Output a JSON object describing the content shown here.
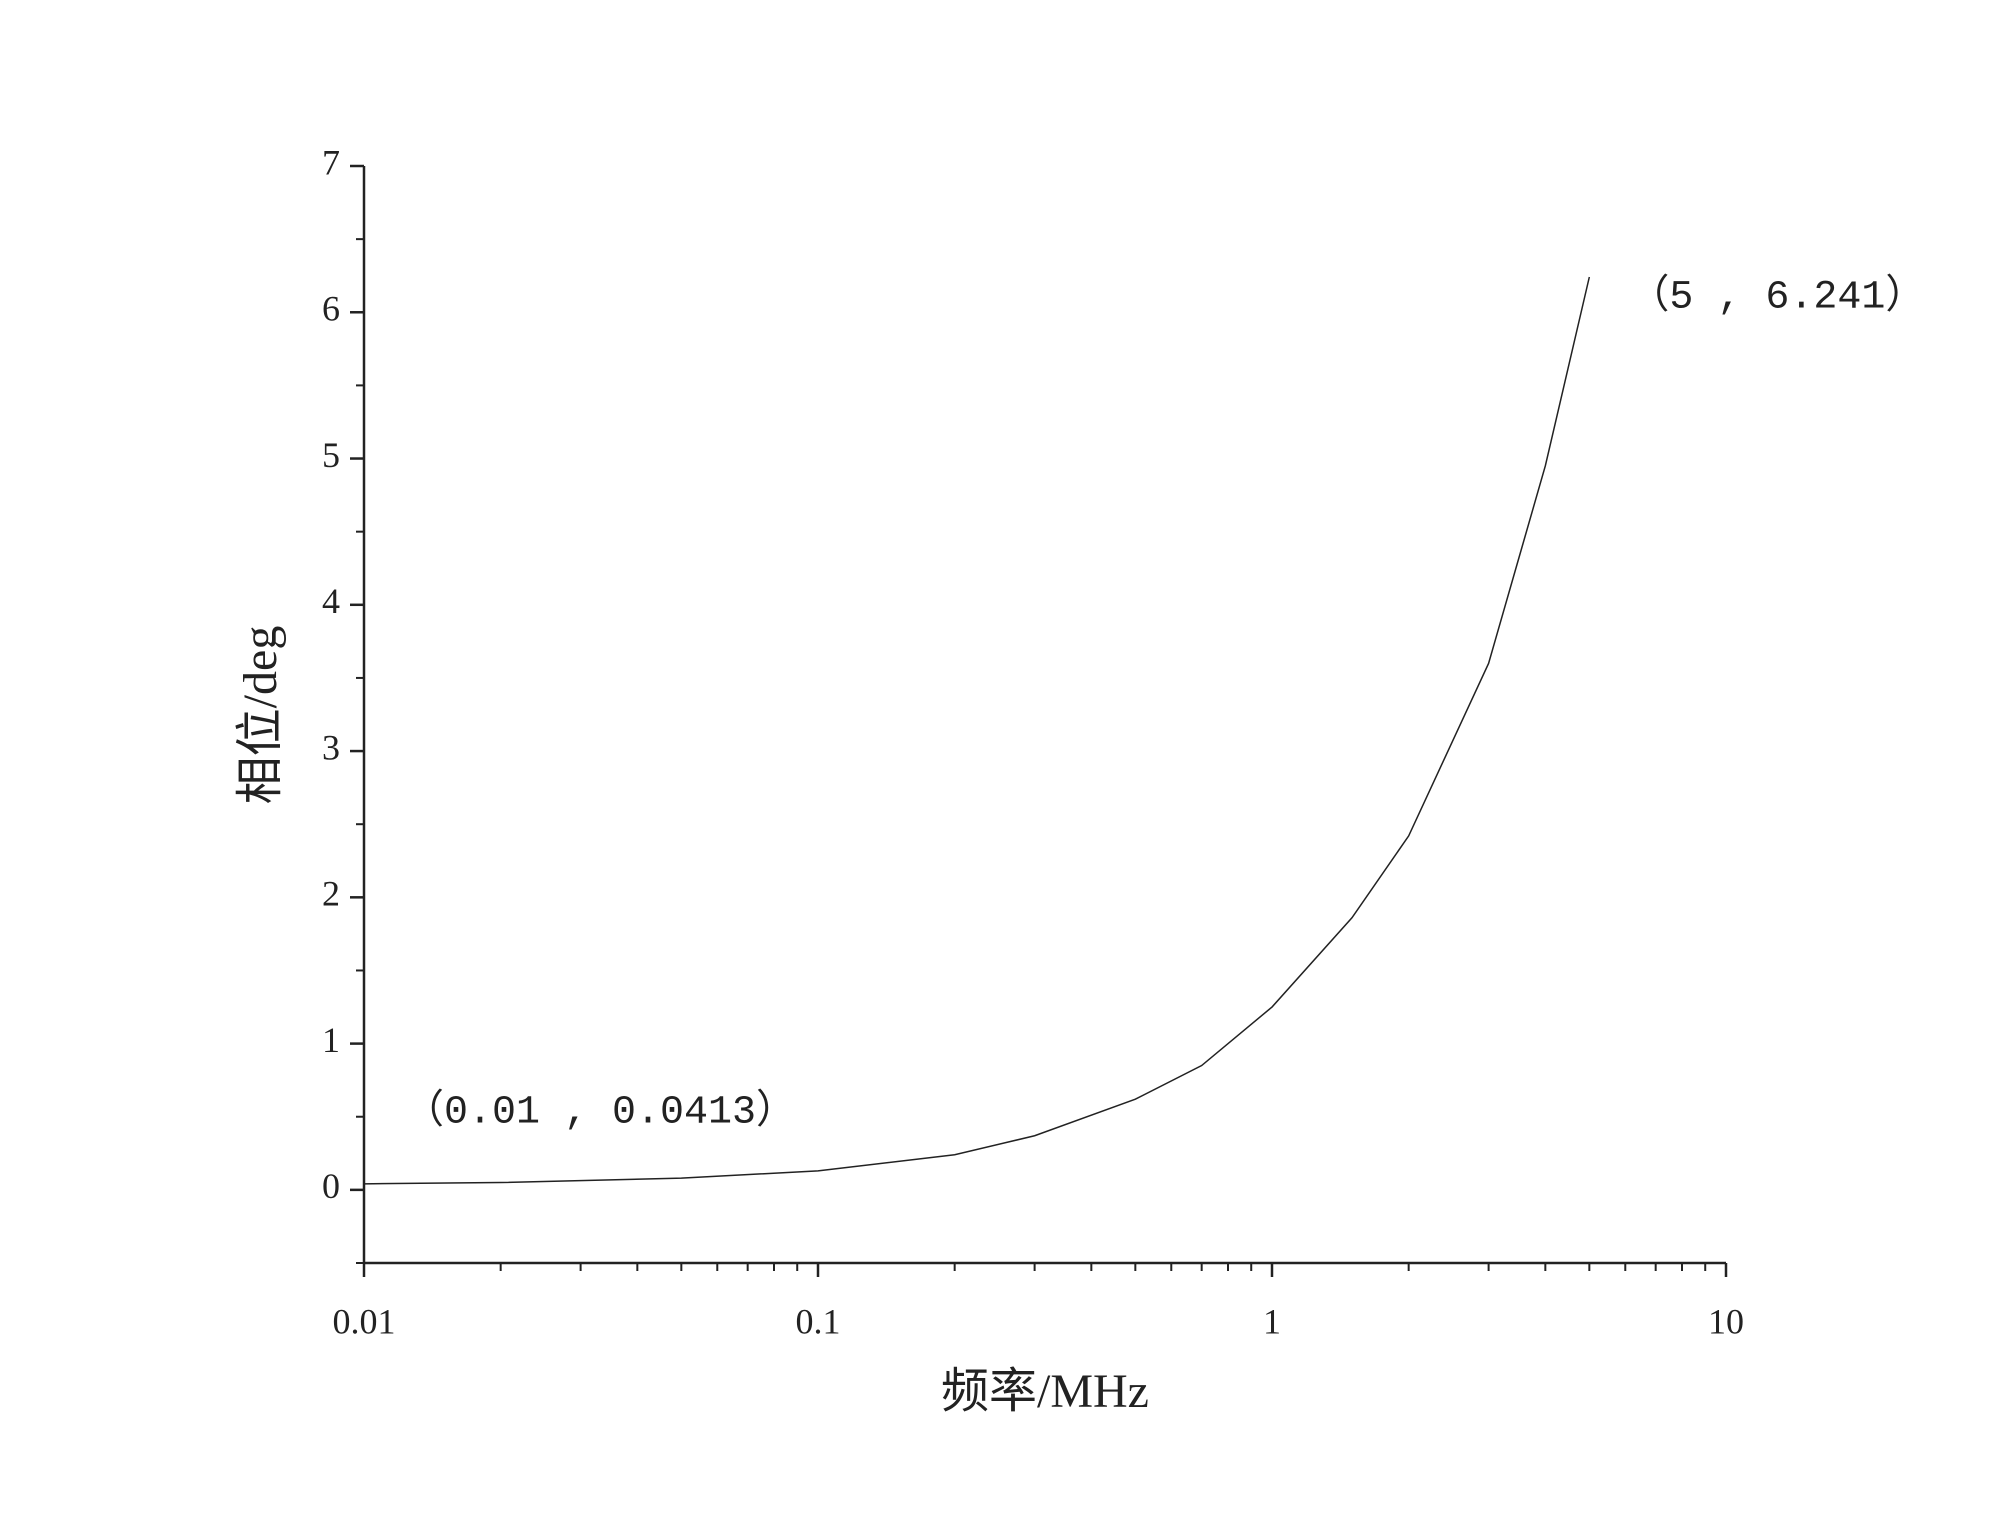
{
  "chart_data": {
    "type": "line",
    "x_label": "频率/MHz",
    "y_label": "相位/deg",
    "x": [
      0.01,
      0.02,
      0.05,
      0.1,
      0.2,
      0.3,
      0.5,
      0.7,
      1,
      1.5,
      2,
      3,
      4,
      5
    ],
    "series": [
      {
        "color": "#222222",
        "values": [
          0.0413,
          0.05,
          0.08,
          0.13,
          0.24,
          0.37,
          0.62,
          0.85,
          1.25,
          1.86,
          2.42,
          3.6,
          4.95,
          6.241
        ]
      }
    ],
    "xscale": "log",
    "xlim": [
      0.01,
      10
    ],
    "xticks": [
      0.01,
      0.1,
      1,
      10
    ],
    "xminorticks": [
      0.02,
      0.03,
      0.04,
      0.05,
      0.06,
      0.07,
      0.08,
      0.09,
      0.2,
      0.3,
      0.4,
      0.5,
      0.6,
      0.7,
      0.8,
      0.9,
      2,
      3,
      4,
      5,
      6,
      7,
      8,
      9
    ],
    "ylim": [
      -0.5,
      7
    ],
    "yticks": [
      0,
      1,
      2,
      3,
      4,
      5,
      6,
      7
    ],
    "yminorticks": [
      -0.5,
      0.5,
      1.5,
      2.5,
      3.5,
      4.5,
      5.5,
      6.5
    ],
    "grid": false,
    "annotations": [
      {
        "text": "（0.01 , 0.0413）",
        "x": 0.01,
        "y": 0.0413
      },
      {
        "text": "（5 , 6.241）",
        "x": 5,
        "y": 6.241
      }
    ]
  }
}
